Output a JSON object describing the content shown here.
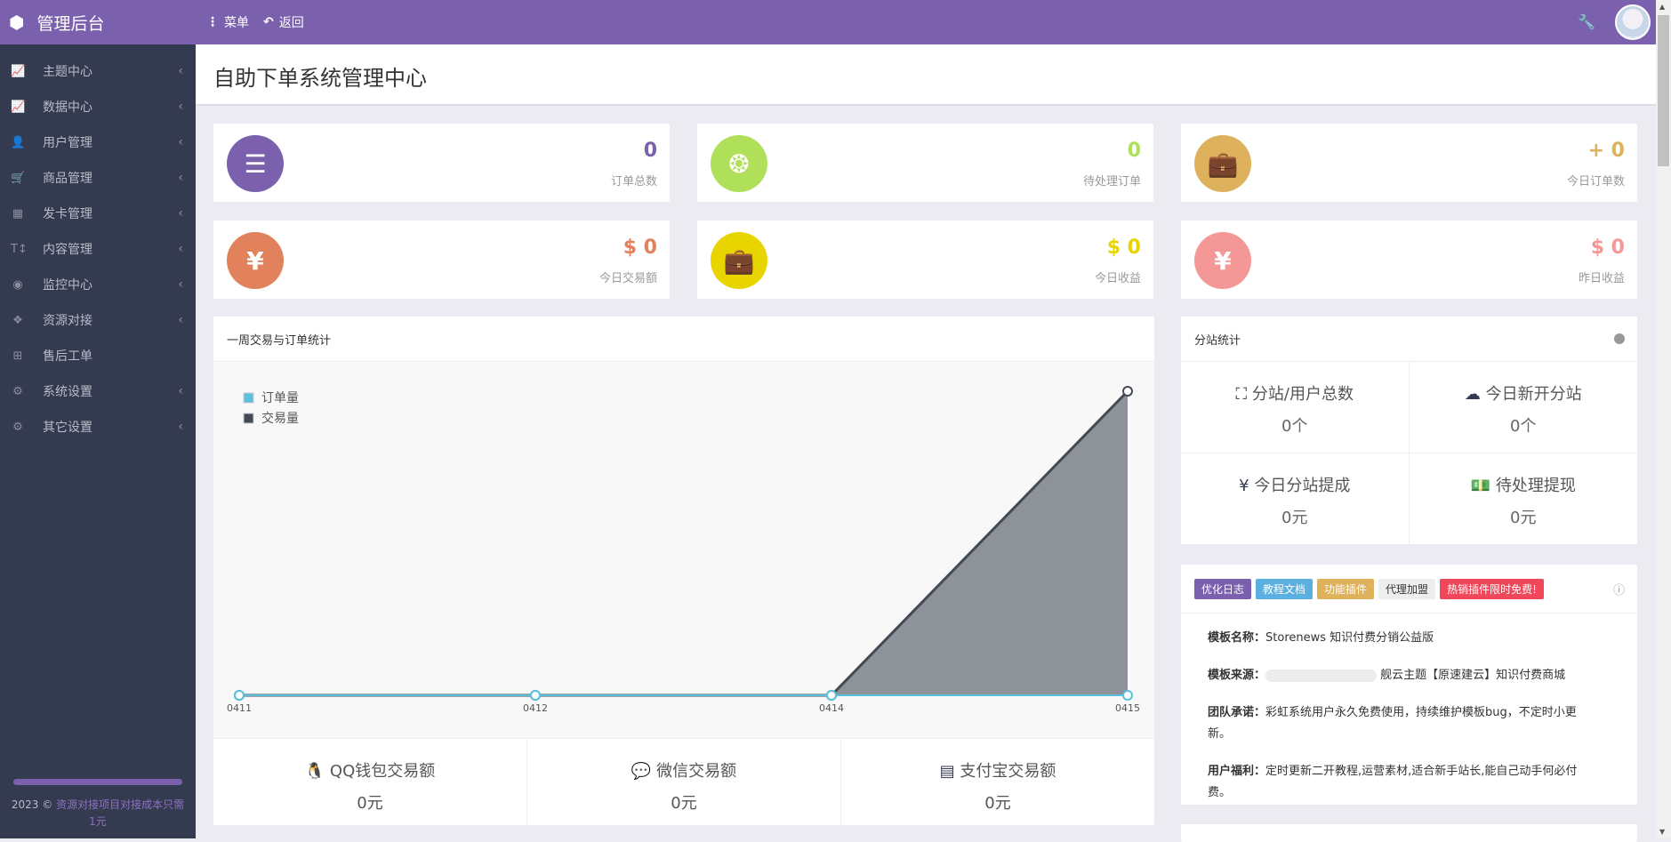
{
  "header": {
    "brand": "管理后台",
    "menu_label": "菜单",
    "back_label": "返回"
  },
  "sidebar": {
    "items": [
      {
        "label": "主题中心",
        "icon": "chart-line-icon",
        "glyph": "📈"
      },
      {
        "label": "数据中心",
        "icon": "chart-line-icon",
        "glyph": "📈"
      },
      {
        "label": "用户管理",
        "icon": "user-icon",
        "glyph": "👤"
      },
      {
        "label": "商品管理",
        "icon": "cart-icon",
        "glyph": "🛒"
      },
      {
        "label": "发卡管理",
        "icon": "grid-icon",
        "glyph": "▦"
      },
      {
        "label": "内容管理",
        "icon": "text-height-icon",
        "glyph": "T↕"
      },
      {
        "label": "监控中心",
        "icon": "dot-circle-icon",
        "glyph": "◉"
      },
      {
        "label": "资源对接",
        "icon": "cubes-icon",
        "glyph": "❖"
      },
      {
        "label": "售后工单",
        "icon": "plus-square-icon",
        "glyph": "⊞"
      },
      {
        "label": "系统设置",
        "icon": "gear-icon",
        "glyph": "⚙"
      },
      {
        "label": "其它设置",
        "icon": "gears-icon",
        "glyph": "⚙"
      }
    ],
    "footer_year": "2023 ©",
    "footer_link": "资源对接项目对接成本只需1元"
  },
  "page_title": "自助下单系统管理中心",
  "cards": [
    {
      "value": "0",
      "label": "订单总数",
      "color": "#7b60ae",
      "icon": "list-ol-icon"
    },
    {
      "value": "0",
      "label": "待处理订单",
      "color": "#b0e05a",
      "icon": "octagon-icon"
    },
    {
      "value": "+ 0",
      "label": "今日订单数",
      "color": "#deb25c",
      "icon": "briefcase-icon"
    },
    {
      "value": "$ 0",
      "label": "今日交易额",
      "color": "#e2825c",
      "icon": "yen-icon"
    },
    {
      "value": "$ 0",
      "label": "今日收益",
      "color": "#e8d500",
      "icon": "briefcase-icon"
    },
    {
      "value": "$ 0",
      "label": "昨日收益",
      "color": "#f49797",
      "icon": "yen-icon"
    }
  ],
  "chart_panel": {
    "title": "一周交易与订单统计"
  },
  "chart_data": {
    "type": "area",
    "categories": [
      "0411",
      "0412",
      "0414",
      "0415"
    ],
    "series": [
      {
        "name": "订单量",
        "values": [
          0,
          0,
          0,
          0
        ],
        "color": "#5bc0de"
      },
      {
        "name": "交易量",
        "values": [
          0,
          0,
          0,
          1
        ],
        "color": "#434a54"
      }
    ],
    "ylim": [
      0,
      1
    ],
    "legend": "top-left",
    "grid": false
  },
  "payments": [
    {
      "label": "QQ钱包交易额",
      "value": "0元",
      "icon": "qq-icon"
    },
    {
      "label": "微信交易额",
      "value": "0元",
      "icon": "wechat-icon"
    },
    {
      "label": "支付宝交易额",
      "value": "0元",
      "icon": "credit-card-icon"
    }
  ],
  "substation": {
    "title": "分站统计",
    "cells": [
      {
        "label": "分站/用户总数",
        "value": "0个",
        "icon": "sitemap-icon",
        "glyph": "⛶"
      },
      {
        "label": "今日新开分站",
        "value": "0个",
        "icon": "cloud-icon",
        "glyph": "☁"
      },
      {
        "label": "今日分站提成",
        "value": "0元",
        "icon": "yen-icon",
        "glyph": "¥"
      },
      {
        "label": "待处理提现",
        "value": "0元",
        "icon": "money-icon",
        "glyph": "💵"
      }
    ]
  },
  "notice": {
    "tags": [
      {
        "label": "优化日志",
        "color": "#7b60ae"
      },
      {
        "label": "教程文档",
        "color": "#5bb0e0"
      },
      {
        "label": "功能插件",
        "color": "#deb25c"
      },
      {
        "label": "代理加盟",
        "color": "#eeeeee"
      },
      {
        "label": "热销插件限时免费!",
        "color": "#f0475a"
      }
    ],
    "rows": [
      {
        "k": "模板名称：",
        "v": "Storenews 知识付费分销公益版"
      },
      {
        "k": "模板来源：",
        "v": "舰云主题【原速建云】知识付费商城"
      },
      {
        "k": "团队承诺：",
        "v": "彩虹系统用户永久免费使用，持续维护模板bug，不定时小更新。"
      },
      {
        "k": "用户福利：",
        "v": "定时更新二开教程,运营素材,适合新手站长,能自己动手何必付费。"
      }
    ]
  }
}
